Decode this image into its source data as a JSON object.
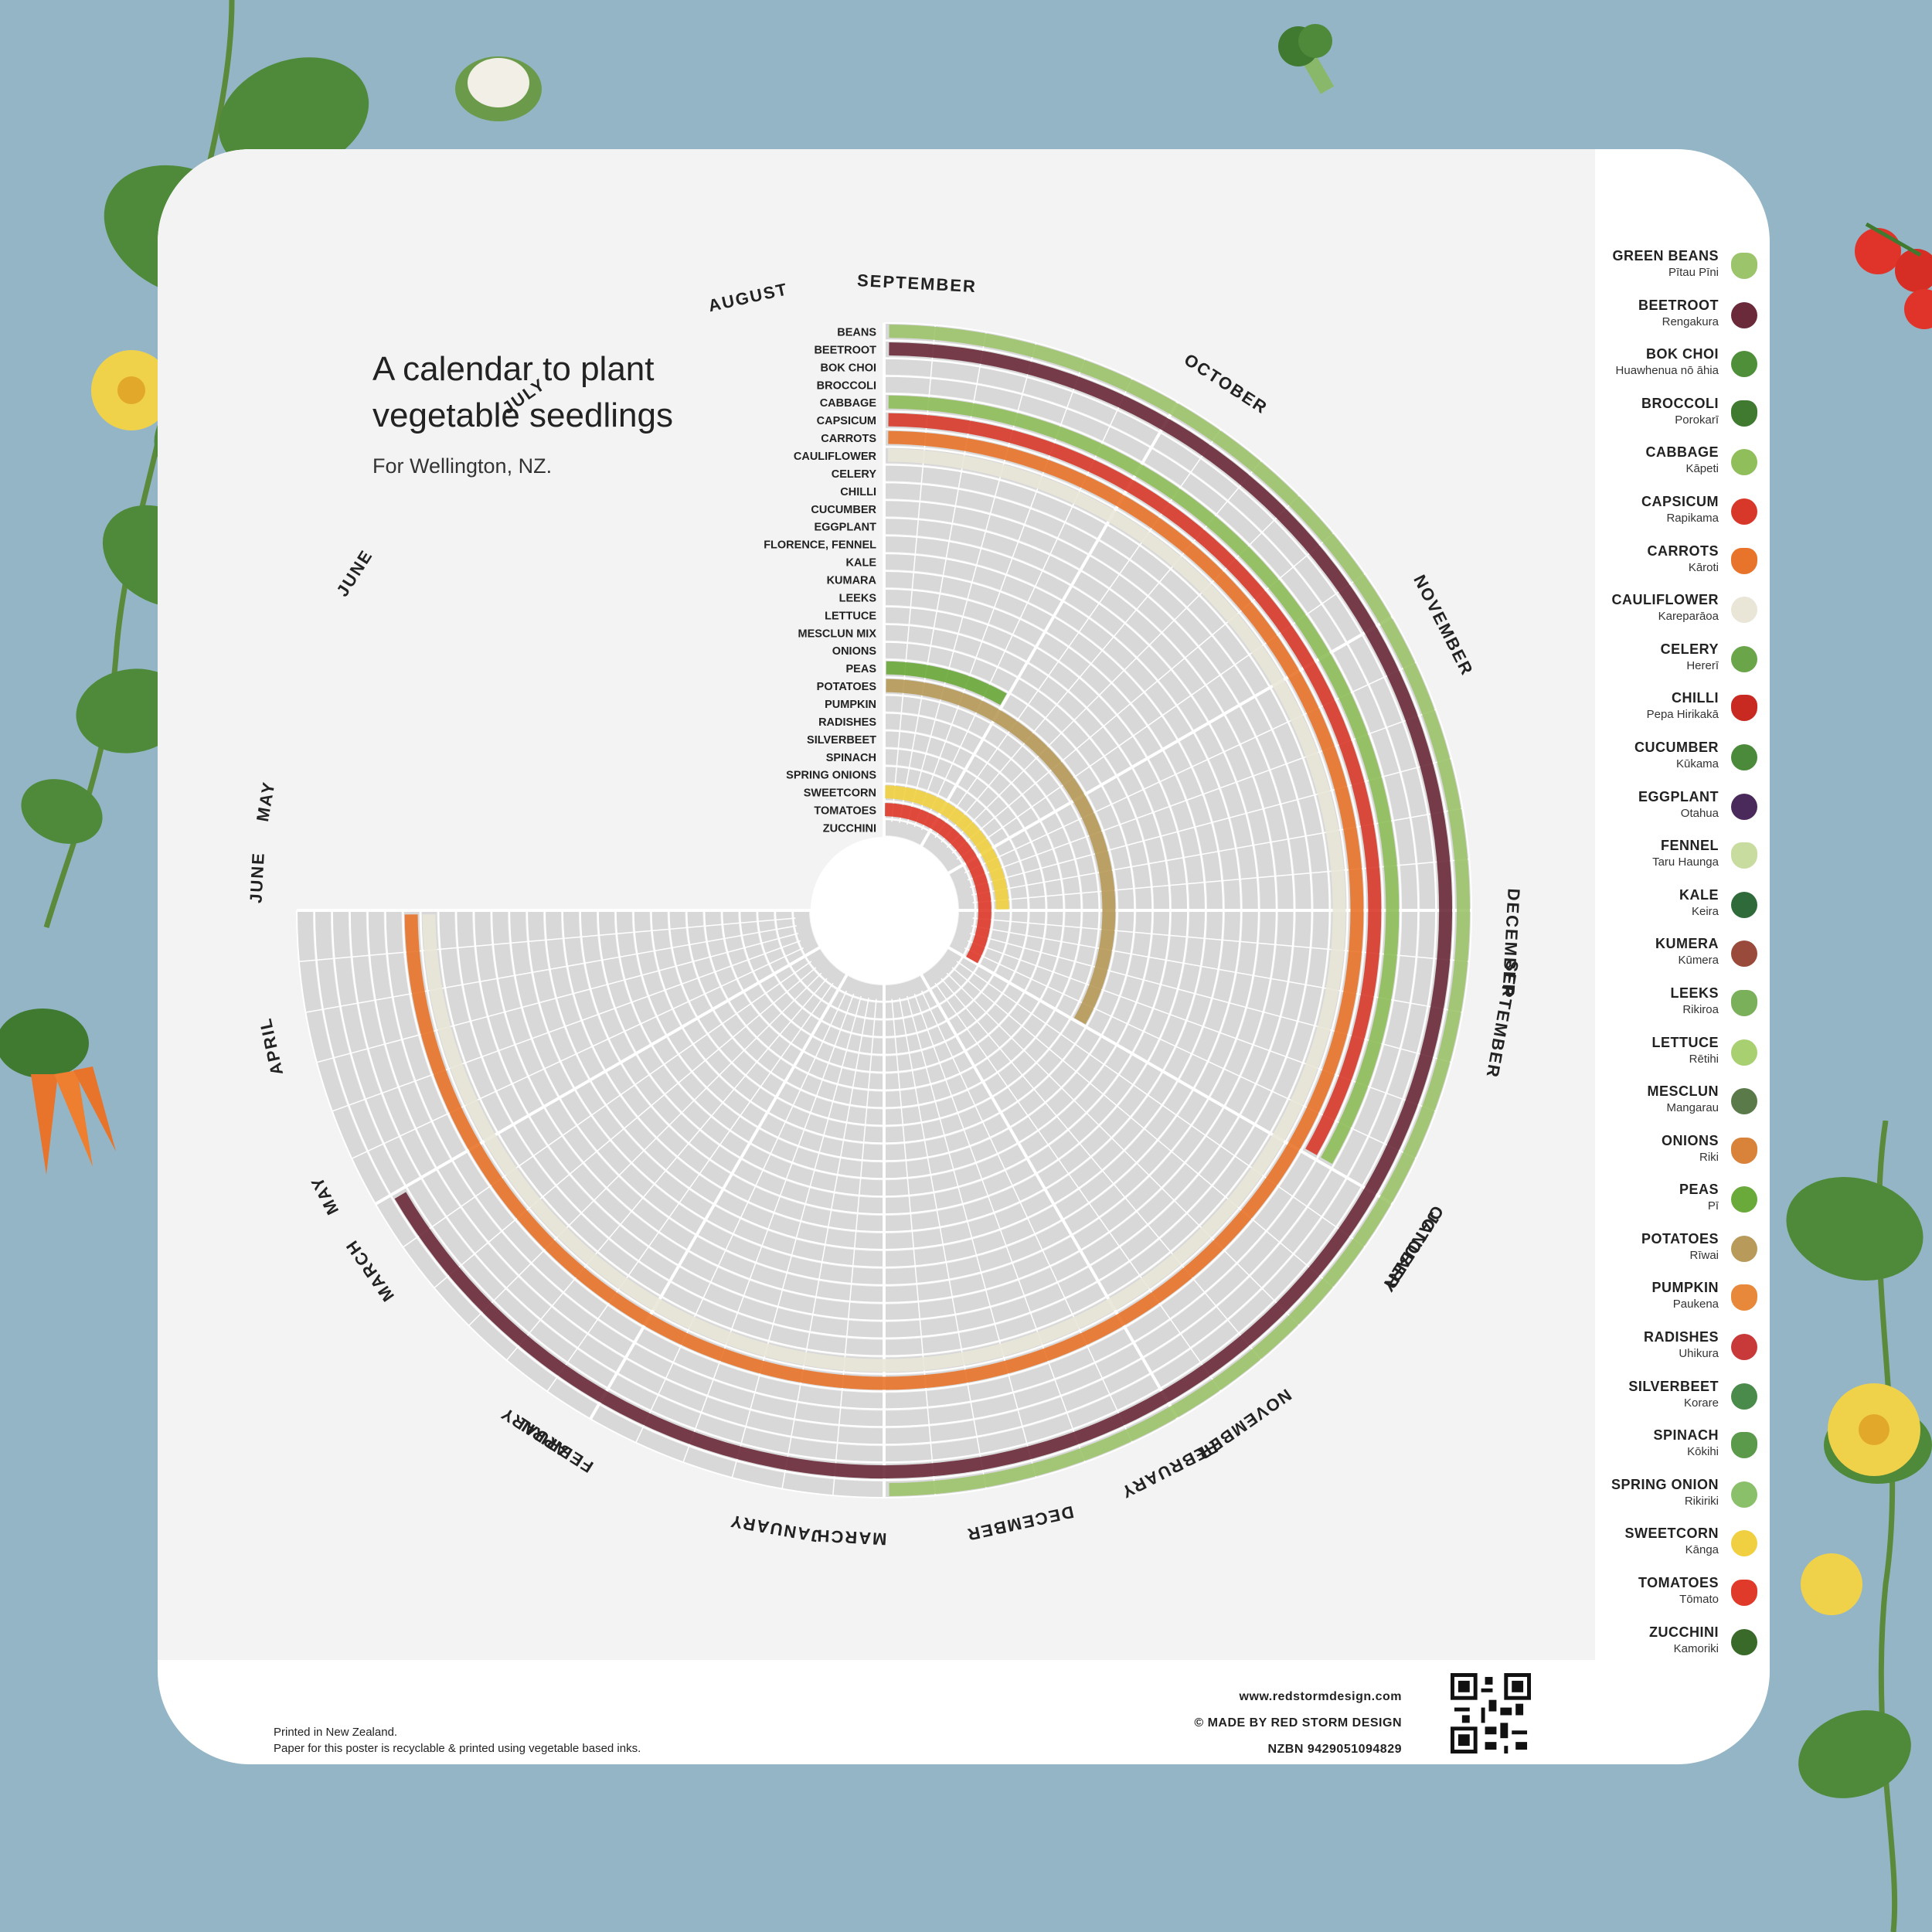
{
  "poster": {
    "title": "A calendar to plant vegetable seedlings",
    "subtitle": "For Wellington, NZ."
  },
  "chart_data": {
    "type": "radial-calendar",
    "title": "A calendar to plant vegetable seedlings",
    "subtitle": "For Wellington, NZ.",
    "months_outer": [
      "SEPTEMBER",
      "OCTOBER",
      "NOVEMBER",
      "DECEMBER",
      "JANUARY",
      "FEBRUARY",
      "MARCH",
      "APRIL",
      "MAY",
      "JUNE",
      "JULY",
      "AUGUST"
    ],
    "months_inner": [
      "SEPTEMBER",
      "OCTOBER",
      "NOVEMBER",
      "DECEMBER",
      "JANUARY",
      "FEBRUARY",
      "MARCH",
      "APRIL",
      "MAY",
      "JUNE",
      "JULY",
      "AUGUST"
    ],
    "rings": [
      "BEANS",
      "BEETROOT",
      "BOK CHOI",
      "BROCCOLI",
      "CABBAGE",
      "CAPSICUM",
      "CARROTS",
      "CAULIFLOWER",
      "CELERY",
      "CHILLI",
      "CUCUMBER",
      "EGGPLANT",
      "FLORENCE, FENNEL",
      "KALE",
      "KUMARA",
      "LEEKS",
      "LETTUCE",
      "MESCLUN MIX",
      "ONIONS",
      "PEAS",
      "POTATOES",
      "PUMPKIN",
      "RADISHES",
      "SILVERBEET",
      "SPINACH",
      "SPRING ONIONS",
      "SWEETCORN",
      "TOMATOES",
      "ZUCCHINI"
    ],
    "bands": [
      {
        "crop": "BEANS",
        "start_month": "SEPTEMBER",
        "end_month": "FEBRUARY"
      },
      {
        "crop": "BEETROOT",
        "start_month": "SEPTEMBER",
        "end_month": "APRIL"
      },
      {
        "crop": "CABBAGE",
        "start_month": "SEPTEMBER",
        "end_month": "DECEMBER"
      },
      {
        "crop": "CAPSICUM",
        "start_month": "SEPTEMBER",
        "end_month": "DECEMBER"
      },
      {
        "crop": "CARROTS",
        "start_month": "SEPTEMBER",
        "end_month": "MAY"
      },
      {
        "crop": "CAULIFLOWER",
        "start_month": "SEPTEMBER",
        "end_month": "MAY"
      },
      {
        "crop": "PEAS",
        "start_month": "SEPTEMBER",
        "end_month": "SEPTEMBER"
      },
      {
        "crop": "POTATOES",
        "start_month": "SEPTEMBER",
        "end_month": "DECEMBER"
      },
      {
        "crop": "SWEETCORN",
        "start_month": "SEPTEMBER",
        "end_month": "NOVEMBER"
      },
      {
        "crop": "TOMATOES",
        "start_month": "SEPTEMBER",
        "end_month": "DECEMBER"
      }
    ]
  },
  "legend": [
    {
      "en": "GREEN BEANS",
      "mi": "Pītau Pīni",
      "color": "#9cc46a"
    },
    {
      "en": "BEETROOT",
      "mi": "Rengakura",
      "color": "#6a2a3a"
    },
    {
      "en": "BOK CHOI",
      "mi": "Huawhenua nō āhia",
      "color": "#4f8f3a"
    },
    {
      "en": "BROCCOLI",
      "mi": "Porokarī",
      "color": "#3f7a30"
    },
    {
      "en": "CABBAGE",
      "mi": "Kāpeti",
      "color": "#8fbe5a"
    },
    {
      "en": "CAPSICUM",
      "mi": "Rapikama",
      "color": "#d8382a"
    },
    {
      "en": "CARROTS",
      "mi": "Kāroti",
      "color": "#e8732a"
    },
    {
      "en": "CAULIFLOWER",
      "mi": "Kareparāoa",
      "color": "#e9e6d8"
    },
    {
      "en": "CELERY",
      "mi": "Hererī",
      "color": "#6aa54a"
    },
    {
      "en": "CHILLI",
      "mi": "Pepa Hirikakā",
      "color": "#c82a22"
    },
    {
      "en": "CUCUMBER",
      "mi": "Kūkama",
      "color": "#4a8a3a"
    },
    {
      "en": "EGGPLANT",
      "mi": "Otahua",
      "color": "#4a2a5a"
    },
    {
      "en": "FENNEL",
      "mi": "Taru Haunga",
      "color": "#c9dca0"
    },
    {
      "en": "KALE",
      "mi": "Keira",
      "color": "#2f6a3a"
    },
    {
      "en": "KUMERA",
      "mi": "Kūmera",
      "color": "#9a4a3a"
    },
    {
      "en": "LEEKS",
      "mi": "Rikiroa",
      "color": "#7ab05a"
    },
    {
      "en": "LETTUCE",
      "mi": "Rētihi",
      "color": "#a8d070"
    },
    {
      "en": "MESCLUN",
      "mi": "Mangarau",
      "color": "#5a7a4a"
    },
    {
      "en": "ONIONS",
      "mi": "Riki",
      "color": "#d8823a"
    },
    {
      "en": "PEAS",
      "mi": "Pī",
      "color": "#6aaa3a"
    },
    {
      "en": "POTATOES",
      "mi": "Rīwai",
      "color": "#b89a5a"
    },
    {
      "en": "PUMPKIN",
      "mi": "Paukena",
      "color": "#e8883a"
    },
    {
      "en": "RADISHES",
      "mi": "Uhikura",
      "color": "#c83a3a"
    },
    {
      "en": "SILVERBEET",
      "mi": "Korare",
      "color": "#4a8a4a"
    },
    {
      "en": "SPINACH",
      "mi": "Kōkihi",
      "color": "#5a9a4a"
    },
    {
      "en": "SPRING ONION",
      "mi": "Rikiriki",
      "color": "#8ac06a"
    },
    {
      "en": "SWEETCORN",
      "mi": "Kānga",
      "color": "#f0d040"
    },
    {
      "en": "TOMATOES",
      "mi": "Tōmato",
      "color": "#e03a2a"
    },
    {
      "en": "ZUCCHINI",
      "mi": "Kamoriki",
      "color": "#3a6a2a"
    }
  ],
  "footer": {
    "printed": "Printed in New Zealand.",
    "paper": "Paper for this poster is recyclable & printed using vegetable based inks.",
    "website": "www.redstormdesign.com",
    "made_by": "© MADE BY RED STORM DESIGN",
    "nzbn": "NZBN  9429051094829"
  },
  "colors": {
    "background": "#93b5c6",
    "panel": "#f3f3f3",
    "ring_grey": "#d8d8d8",
    "divider": "#ffffff"
  }
}
